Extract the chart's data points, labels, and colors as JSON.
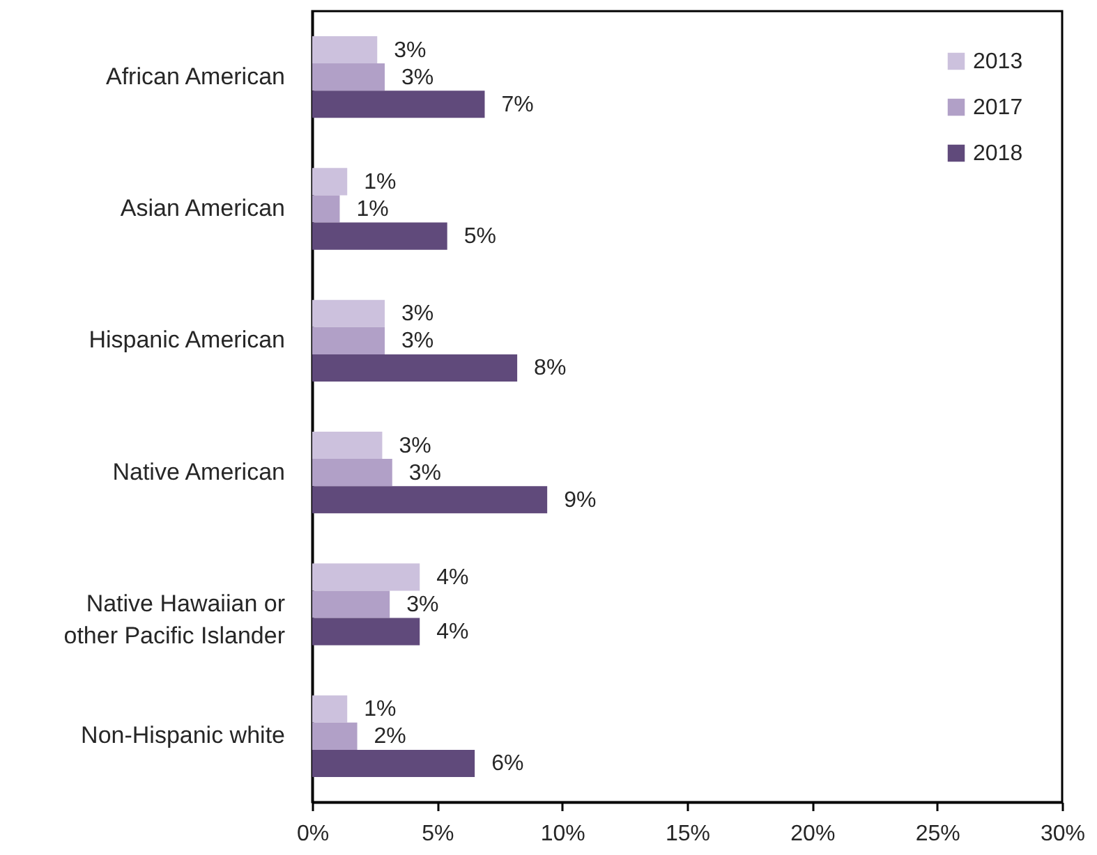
{
  "chart_data": {
    "type": "bar",
    "orientation": "horizontal",
    "categories": [
      "African American",
      "Asian American",
      "Hispanic American",
      "Native American",
      "Native Hawaiian or other Pacific Islander",
      "Non-Hispanic white"
    ],
    "series": [
      {
        "name": "2013",
        "color": "#ccc1dd",
        "values": [
          2.6,
          1.4,
          2.9,
          2.8,
          4.3,
          1.4
        ],
        "value_labels": [
          "3%",
          "1%",
          "3%",
          "3%",
          "4%",
          "1%"
        ]
      },
      {
        "name": "2017",
        "color": "#b1a0c7",
        "values": [
          2.9,
          1.1,
          2.9,
          3.2,
          3.1,
          1.8
        ],
        "value_labels": [
          "3%",
          "1%",
          "3%",
          "3%",
          "3%",
          "2%"
        ]
      },
      {
        "name": "2018",
        "color": "#604a7b",
        "values": [
          6.9,
          5.4,
          8.2,
          9.4,
          4.3,
          6.5
        ],
        "value_labels": [
          "7%",
          "5%",
          "8%",
          "9%",
          "4%",
          "6%"
        ]
      }
    ],
    "xlim": [
      0,
      30
    ],
    "xticks": [
      {
        "value": 0,
        "label": "0%"
      },
      {
        "value": 5,
        "label": "5%"
      },
      {
        "value": 10,
        "label": "10%"
      },
      {
        "value": 15,
        "label": "15%"
      },
      {
        "value": 20,
        "label": "20%"
      },
      {
        "value": 25,
        "label": "25%"
      },
      {
        "value": 30,
        "label": "30%"
      }
    ],
    "grid": false,
    "legend": "top right"
  }
}
